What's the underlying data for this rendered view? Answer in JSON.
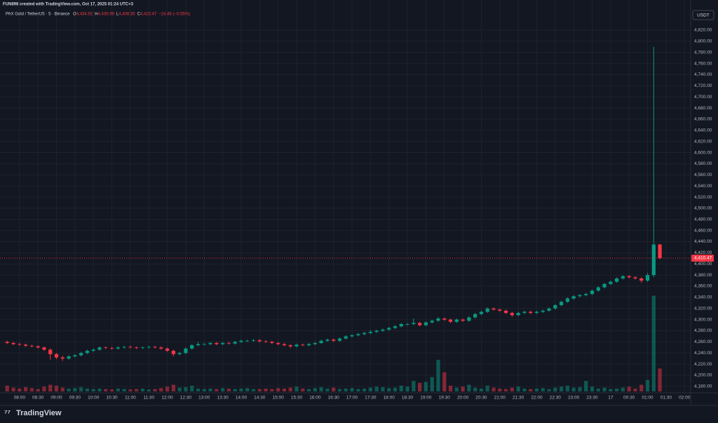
{
  "chart_data": {
    "type": "candlestick",
    "watermark": "FUN898 created with TradingView.com, Oct 17, 2025 01:24 UTC+3",
    "title": "PAX Gold / TetherUS · 5 · Binance",
    "ohlc_legend": [
      {
        "key": "O",
        "label": "4,434.92"
      },
      {
        "key": "H",
        "label": "4,435.99"
      },
      {
        "key": "L",
        "label": "4,408.35"
      },
      {
        "key": "C",
        "label": "4,410.47"
      }
    ],
    "change_label": "−24.46 (−0.55%)",
    "currency": "USDT",
    "brand": "TradingView",
    "last_price": {
      "value": 4410.47,
      "label": "4,410.47"
    },
    "up_color": "#089981",
    "down_color": "#f23645",
    "grid": true,
    "open": [
      4260,
      4258,
      4256,
      4255,
      4253,
      4252,
      4250,
      4246,
      4238,
      4232,
      4230,
      4234,
      4236,
      4240,
      4244,
      4246,
      4250,
      4249,
      4248,
      4250,
      4251,
      4250,
      4249,
      4250,
      4251,
      4250,
      4248,
      4244,
      4238,
      4240,
      4248,
      4254,
      4256,
      4256,
      4258,
      4256,
      4258,
      4257,
      4260,
      4262,
      4262,
      4263,
      4261,
      4260,
      4258,
      4256,
      4254,
      4252,
      4255,
      4254,
      4256,
      4258,
      4262,
      4264,
      4262,
      4266,
      4270,
      4272,
      4274,
      4276,
      4278,
      4280,
      4282,
      4285,
      4288,
      4292,
      4292,
      4294,
      4290,
      4295,
      4298,
      4302,
      4300,
      4296,
      4300,
      4298,
      4304,
      4310,
      4314,
      4320,
      4318,
      4316,
      4312,
      4308,
      4312,
      4314,
      4312,
      4314,
      4316,
      4320,
      4326,
      4332,
      4338,
      4342,
      4344,
      4346,
      4352,
      4358,
      4364,
      4368,
      4374,
      4378,
      4376,
      4374,
      4370,
      4380,
      4434.92
    ],
    "high": [
      4262,
      4260,
      4258,
      4257,
      4255,
      4254,
      4252,
      4248,
      4240,
      4235,
      4236,
      4238,
      4242,
      4246,
      4248,
      4252,
      4252,
      4251,
      4252,
      4253,
      4253,
      4252,
      4252,
      4253,
      4253,
      4252,
      4250,
      4246,
      4242,
      4250,
      4256,
      4260,
      4258,
      4260,
      4260,
      4260,
      4260,
      4262,
      4264,
      4264,
      4265,
      4265,
      4263,
      4262,
      4260,
      4258,
      4256,
      4257,
      4257,
      4258,
      4260,
      4264,
      4266,
      4266,
      4268,
      4272,
      4274,
      4276,
      4278,
      4281,
      4282,
      4284,
      4287,
      4290,
      4294,
      4294,
      4302,
      4296,
      4297,
      4300,
      4305,
      4304,
      4302,
      4302,
      4302,
      4306,
      4312,
      4316,
      4322,
      4322,
      4320,
      4318,
      4314,
      4314,
      4316,
      4316,
      4316,
      4318,
      4322,
      4328,
      4334,
      4340,
      4344,
      4346,
      4348,
      4354,
      4360,
      4366,
      4370,
      4376,
      4380,
      4380,
      4378,
      4376,
      4384,
      4790,
      4435.99
    ],
    "low": [
      4256,
      4254,
      4253,
      4251,
      4250,
      4248,
      4244,
      4228,
      4229,
      4226,
      4228,
      4232,
      4234,
      4238,
      4242,
      4244,
      4247,
      4246,
      4246,
      4248,
      4248,
      4247,
      4247,
      4248,
      4248,
      4246,
      4242,
      4234,
      4236,
      4238,
      4246,
      4252,
      4254,
      4254,
      4254,
      4254,
      4255,
      4255,
      4258,
      4260,
      4260,
      4259,
      4258,
      4256,
      4254,
      4252,
      4249,
      4250,
      4252,
      4252,
      4254,
      4256,
      4260,
      4260,
      4260,
      4264,
      4268,
      4270,
      4272,
      4274,
      4276,
      4278,
      4280,
      4283,
      4286,
      4289,
      4290,
      4288,
      4288,
      4293,
      4296,
      4298,
      4294,
      4294,
      4296,
      4296,
      4302,
      4308,
      4312,
      4316,
      4314,
      4310,
      4305,
      4306,
      4310,
      4310,
      4310,
      4312,
      4314,
      4318,
      4324,
      4330,
      4336,
      4340,
      4342,
      4344,
      4350,
      4356,
      4362,
      4366,
      4372,
      4374,
      4372,
      4366,
      4368,
      4376,
      4408.35
    ],
    "close": [
      4258,
      4256,
      4255,
      4253,
      4252,
      4250,
      4246,
      4238,
      4232,
      4230,
      4234,
      4236,
      4240,
      4244,
      4246,
      4250,
      4249,
      4248,
      4250,
      4251,
      4250,
      4249,
      4250,
      4251,
      4250,
      4248,
      4244,
      4238,
      4240,
      4248,
      4254,
      4256,
      4256,
      4258,
      4256,
      4258,
      4257,
      4260,
      4262,
      4262,
      4263,
      4261,
      4260,
      4258,
      4256,
      4254,
      4252,
      4255,
      4254,
      4256,
      4258,
      4262,
      4264,
      4262,
      4266,
      4270,
      4272,
      4274,
      4276,
      4278,
      4280,
      4282,
      4285,
      4288,
      4292,
      4292,
      4294,
      4290,
      4295,
      4298,
      4302,
      4300,
      4296,
      4300,
      4298,
      4304,
      4310,
      4314,
      4320,
      4318,
      4316,
      4312,
      4308,
      4312,
      4314,
      4312,
      4314,
      4316,
      4320,
      4326,
      4332,
      4338,
      4342,
      4344,
      4346,
      4352,
      4358,
      4364,
      4368,
      4374,
      4378,
      4376,
      4374,
      4370,
      4380,
      4434.92,
      4410.47
    ],
    "volume": [
      12,
      8,
      6,
      9,
      7,
      5,
      10,
      14,
      12,
      8,
      6,
      7,
      9,
      6,
      5,
      6,
      5,
      4,
      6,
      5,
      4,
      5,
      6,
      4,
      5,
      7,
      10,
      14,
      8,
      9,
      12,
      6,
      5,
      6,
      5,
      7,
      6,
      5,
      6,
      7,
      5,
      5,
      6,
      5,
      7,
      6,
      8,
      10,
      6,
      5,
      7,
      9,
      6,
      8,
      5,
      6,
      7,
      5,
      6,
      8,
      10,
      9,
      7,
      8,
      12,
      10,
      22,
      18,
      20,
      30,
      66,
      40,
      12,
      8,
      10,
      14,
      8,
      6,
      12,
      8,
      6,
      5,
      8,
      10,
      6,
      5,
      6,
      7,
      5,
      8,
      10,
      12,
      8,
      9,
      22,
      10,
      6,
      8,
      5,
      6,
      8,
      10,
      6,
      14,
      24,
      200,
      48
    ],
    "xlim": [
      -0.6,
      111
    ],
    "xticks": [
      {
        "value": 2,
        "label": "08:00"
      },
      {
        "value": 5,
        "label": "08:30"
      },
      {
        "value": 8,
        "label": "09:00"
      },
      {
        "value": 11,
        "label": "09:30"
      },
      {
        "value": 14,
        "label": "10:00"
      },
      {
        "value": 17,
        "label": "10:30"
      },
      {
        "value": 20,
        "label": "11:00"
      },
      {
        "value": 23,
        "label": "11:30"
      },
      {
        "value": 26,
        "label": "12:00"
      },
      {
        "value": 29,
        "label": "12:30"
      },
      {
        "value": 32,
        "label": "13:00"
      },
      {
        "value": 35,
        "label": "13:30"
      },
      {
        "value": 38,
        "label": "14:00"
      },
      {
        "value": 41,
        "label": "14:30"
      },
      {
        "value": 44,
        "label": "15:00"
      },
      {
        "value": 47,
        "label": "15:30"
      },
      {
        "value": 50,
        "label": "16:00"
      },
      {
        "value": 53,
        "label": "16:30"
      },
      {
        "value": 56,
        "label": "17:00"
      },
      {
        "value": 59,
        "label": "17:30"
      },
      {
        "value": 62,
        "label": "18:00"
      },
      {
        "value": 65,
        "label": "18:30"
      },
      {
        "value": 68,
        "label": "19:00"
      },
      {
        "value": 71,
        "label": "19:30"
      },
      {
        "value": 74,
        "label": "20:00"
      },
      {
        "value": 77,
        "label": "20:30"
      },
      {
        "value": 80,
        "label": "21:00"
      },
      {
        "value": 83,
        "label": "21:30"
      },
      {
        "value": 86,
        "label": "22:00"
      },
      {
        "value": 89,
        "label": "22:30"
      },
      {
        "value": 92,
        "label": "23:00"
      },
      {
        "value": 95,
        "label": "23:30"
      },
      {
        "value": 98,
        "label": "17"
      },
      {
        "value": 101,
        "label": "00:30"
      },
      {
        "value": 104,
        "label": "01:00"
      },
      {
        "value": 107,
        "label": "01:30"
      },
      {
        "value": 110,
        "label": "02:00"
      }
    ],
    "ylim": [
      4171,
      4859
    ],
    "yticks": [
      {
        "value": 4180,
        "label": "4,180.00"
      },
      {
        "value": 4200,
        "label": "4,200.00"
      },
      {
        "value": 4220,
        "label": "4,220.00"
      },
      {
        "value": 4240,
        "label": "4,240.00"
      },
      {
        "value": 4260,
        "label": "4,260.00"
      },
      {
        "value": 4280,
        "label": "4,280.00"
      },
      {
        "value": 4300,
        "label": "4,300.00"
      },
      {
        "value": 4320,
        "label": "4,320.00"
      },
      {
        "value": 4340,
        "label": "4,340.00"
      },
      {
        "value": 4360,
        "label": "4,360.00"
      },
      {
        "value": 4380,
        "label": "4,380.00"
      },
      {
        "value": 4400,
        "label": "4,400.00"
      },
      {
        "value": 4420,
        "label": "4,420.00"
      },
      {
        "value": 4440,
        "label": "4,440.00"
      },
      {
        "value": 4460,
        "label": "4,460.00"
      },
      {
        "value": 4480,
        "label": "4,480.00"
      },
      {
        "value": 4500,
        "label": "4,500.00"
      },
      {
        "value": 4520,
        "label": "4,520.00"
      },
      {
        "value": 4540,
        "label": "4,540.00"
      },
      {
        "value": 4560,
        "label": "4,560.00"
      },
      {
        "value": 4580,
        "label": "4,580.00"
      },
      {
        "value": 4600,
        "label": "4,600.00"
      },
      {
        "value": 4620,
        "label": "4,620.00"
      },
      {
        "value": 4640,
        "label": "4,640.00"
      },
      {
        "value": 4660,
        "label": "4,660.00"
      },
      {
        "value": 4680,
        "label": "4,680.00"
      },
      {
        "value": 4700,
        "label": "4,700.00"
      },
      {
        "value": 4720,
        "label": "4,720.00"
      },
      {
        "value": 4740,
        "label": "4,740.00"
      },
      {
        "value": 4760,
        "label": "4,760.00"
      },
      {
        "value": 4780,
        "label": "4,780.00"
      },
      {
        "value": 4800,
        "label": "4,800.00"
      },
      {
        "value": 4820,
        "label": "4,820.00"
      }
    ]
  }
}
